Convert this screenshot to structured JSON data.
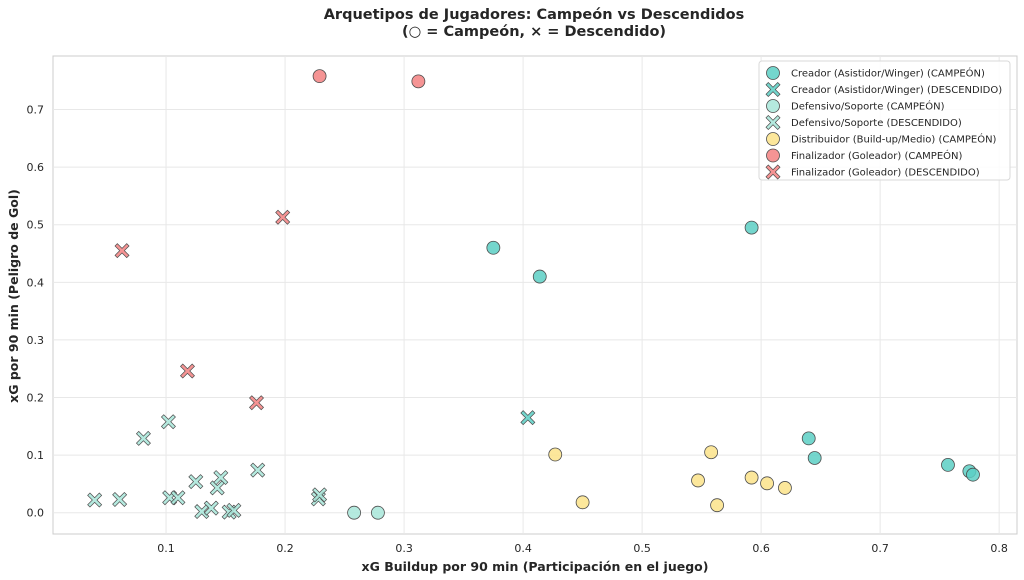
{
  "chart_data": {
    "type": "scatter",
    "title": "Arquetipos de Jugadores: Campeón vs Descendidos",
    "subtitle": "(○ = Campeón, × = Descendido)",
    "xlabel": "xG Buildup por 90 min (Participación en el juego)",
    "ylabel": "xG por 90 min (Peligro de Gol)",
    "xlim": [
      0.005,
      0.815
    ],
    "ylim": [
      -0.037,
      0.793
    ],
    "xticks": [
      0.1,
      0.2,
      0.3,
      0.4,
      0.5,
      0.6,
      0.7,
      0.8
    ],
    "xtick_labels": [
      "0.1",
      "0.2",
      "0.3",
      "0.4",
      "0.5",
      "0.6",
      "0.7",
      "0.8"
    ],
    "yticks": [
      0.0,
      0.1,
      0.2,
      0.3,
      0.4,
      0.5,
      0.6,
      0.7
    ],
    "ytick_labels": [
      "0.0",
      "0.1",
      "0.2",
      "0.3",
      "0.4",
      "0.5",
      "0.6",
      "0.7"
    ],
    "grid": true,
    "legend_position": "top-right",
    "series": [
      {
        "name": "Creador (Asistidor/Winger) (CAMPEÓN)",
        "marker": "circle",
        "color": "#5ccfc4",
        "points": [
          [
            0.375,
            0.46
          ],
          [
            0.414,
            0.41
          ],
          [
            0.592,
            0.495
          ],
          [
            0.64,
            0.129
          ],
          [
            0.645,
            0.095
          ],
          [
            0.757,
            0.083
          ],
          [
            0.775,
            0.072
          ],
          [
            0.778,
            0.066
          ]
        ]
      },
      {
        "name": "Creador (Asistidor/Winger) (DESCENDIDO)",
        "marker": "x",
        "color": "#5ccfc4",
        "points": [
          [
            0.404,
            0.165
          ]
        ]
      },
      {
        "name": "Defensivo/Soporte (CAMPEÓN)",
        "marker": "circle",
        "color": "#a8e6d9",
        "points": [
          [
            0.258,
            0.0
          ],
          [
            0.278,
            0.0
          ]
        ]
      },
      {
        "name": "Defensivo/Soporte (DESCENDIDO)",
        "marker": "x",
        "color": "#a8e6d9",
        "points": [
          [
            0.04,
            0.022
          ],
          [
            0.061,
            0.023
          ],
          [
            0.081,
            0.129
          ],
          [
            0.102,
            0.158
          ],
          [
            0.103,
            0.026
          ],
          [
            0.11,
            0.026
          ],
          [
            0.125,
            0.054
          ],
          [
            0.13,
            0.002
          ],
          [
            0.138,
            0.008
          ],
          [
            0.143,
            0.043
          ],
          [
            0.146,
            0.061
          ],
          [
            0.153,
            0.001
          ],
          [
            0.157,
            0.004
          ],
          [
            0.177,
            0.074
          ],
          [
            0.228,
            0.024
          ],
          [
            0.229,
            0.031
          ]
        ]
      },
      {
        "name": "Distribuidor (Build-up/Medio) (CAMPEÓN)",
        "marker": "circle",
        "color": "#fce38a",
        "points": [
          [
            0.427,
            0.101
          ],
          [
            0.45,
            0.018
          ],
          [
            0.547,
            0.056
          ],
          [
            0.558,
            0.105
          ],
          [
            0.563,
            0.013
          ],
          [
            0.592,
            0.061
          ],
          [
            0.605,
            0.051
          ],
          [
            0.62,
            0.043
          ]
        ]
      },
      {
        "name": "Finalizador (Goleador) (CAMPEÓN)",
        "marker": "circle",
        "color": "#f38181",
        "points": [
          [
            0.229,
            0.758
          ],
          [
            0.312,
            0.749
          ]
        ]
      },
      {
        "name": "Finalizador (Goleador) (DESCENDIDO)",
        "marker": "x",
        "color": "#f38181",
        "points": [
          [
            0.063,
            0.455
          ],
          [
            0.118,
            0.246
          ],
          [
            0.176,
            0.191
          ],
          [
            0.198,
            0.513
          ]
        ]
      }
    ]
  }
}
